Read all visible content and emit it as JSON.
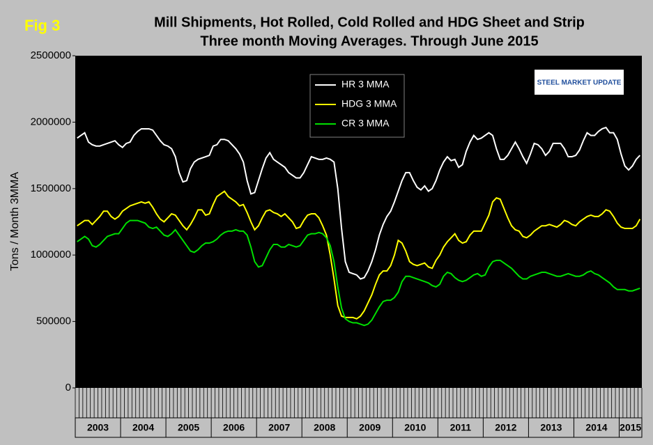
{
  "chart_data": {
    "type": "line",
    "figure_label": "Fig 3",
    "title": "Mill Shipments, Hot Rolled, Cold Rolled and HDG Sheet and Strip",
    "subtitle": "Three month Moving Averages. Through June 2015",
    "y_label": "Tons / Month 3MMA",
    "logo": "STEEL MARKET UPDATE",
    "ylim": [
      0,
      2500000
    ],
    "yticks": [
      0,
      500000,
      1000000,
      1500000,
      2000000,
      2500000
    ],
    "grid": false,
    "legend": "top-center",
    "categories": [
      "2003",
      null,
      null,
      null,
      null,
      null,
      null,
      null,
      null,
      null,
      null,
      null,
      "2004",
      null,
      null,
      null,
      null,
      null,
      null,
      null,
      null,
      null,
      null,
      null,
      "2005",
      null,
      null,
      null,
      null,
      null,
      null,
      null,
      null,
      null,
      null,
      null,
      "2006",
      null,
      null,
      null,
      null,
      null,
      null,
      null,
      null,
      null,
      null,
      null,
      "2007",
      null,
      null,
      null,
      null,
      null,
      null,
      null,
      null,
      null,
      null,
      null,
      "2008",
      null,
      null,
      null,
      null,
      null,
      null,
      null,
      null,
      null,
      null,
      null,
      "2009",
      null,
      null,
      null,
      null,
      null,
      null,
      null,
      null,
      null,
      null,
      null,
      "2010",
      null,
      null,
      null,
      null,
      null,
      null,
      null,
      null,
      null,
      null,
      null,
      "2011",
      null,
      null,
      null,
      null,
      null,
      null,
      null,
      null,
      null,
      null,
      null,
      "2012",
      null,
      null,
      null,
      null,
      null,
      null,
      null,
      null,
      null,
      null,
      null,
      "2013",
      null,
      null,
      null,
      null,
      null,
      null,
      null,
      null,
      null,
      null,
      null,
      "2014",
      null,
      null,
      null,
      null,
      null,
      null,
      null,
      null,
      null,
      null,
      null,
      "2015",
      null,
      null,
      null,
      null,
      null
    ],
    "series": [
      {
        "name": "HR 3 MMA",
        "color": "#ffffff",
        "values": [
          1880000,
          1900000,
          1920000,
          1850000,
          1830000,
          1820000,
          1820000,
          1830000,
          1840000,
          1850000,
          1860000,
          1830000,
          1810000,
          1840000,
          1850000,
          1900000,
          1930000,
          1950000,
          1950000,
          1950000,
          1940000,
          1900000,
          1860000,
          1830000,
          1820000,
          1800000,
          1740000,
          1620000,
          1550000,
          1560000,
          1650000,
          1700000,
          1720000,
          1730000,
          1740000,
          1750000,
          1820000,
          1830000,
          1870000,
          1870000,
          1860000,
          1830000,
          1800000,
          1760000,
          1700000,
          1560000,
          1460000,
          1470000,
          1560000,
          1650000,
          1730000,
          1770000,
          1720000,
          1700000,
          1680000,
          1660000,
          1620000,
          1600000,
          1580000,
          1580000,
          1620000,
          1680000,
          1740000,
          1730000,
          1720000,
          1720000,
          1730000,
          1720000,
          1700000,
          1500000,
          1200000,
          950000,
          870000,
          860000,
          850000,
          820000,
          830000,
          880000,
          950000,
          1040000,
          1150000,
          1230000,
          1290000,
          1330000,
          1400000,
          1480000,
          1560000,
          1620000,
          1620000,
          1560000,
          1510000,
          1490000,
          1520000,
          1480000,
          1500000,
          1560000,
          1640000,
          1700000,
          1740000,
          1710000,
          1720000,
          1660000,
          1680000,
          1780000,
          1850000,
          1900000,
          1870000,
          1880000,
          1900000,
          1920000,
          1900000,
          1800000,
          1720000,
          1720000,
          1750000,
          1800000,
          1850000,
          1800000,
          1740000,
          1690000,
          1760000,
          1840000,
          1830000,
          1800000,
          1750000,
          1780000,
          1840000,
          1840000,
          1840000,
          1800000,
          1740000,
          1740000,
          1750000,
          1790000,
          1860000,
          1920000,
          1900000,
          1900000,
          1930000,
          1950000,
          1960000,
          1920000,
          1920000,
          1870000,
          1760000,
          1670000,
          1640000,
          1670000,
          1720000,
          1750000
        ]
      },
      {
        "name": "HDG 3 MMA",
        "color": "#ffff00",
        "values": [
          1220000,
          1240000,
          1260000,
          1260000,
          1230000,
          1260000,
          1290000,
          1330000,
          1330000,
          1290000,
          1270000,
          1290000,
          1330000,
          1350000,
          1370000,
          1380000,
          1390000,
          1400000,
          1390000,
          1400000,
          1360000,
          1310000,
          1270000,
          1250000,
          1280000,
          1310000,
          1300000,
          1260000,
          1220000,
          1190000,
          1230000,
          1280000,
          1340000,
          1340000,
          1300000,
          1310000,
          1380000,
          1440000,
          1460000,
          1480000,
          1440000,
          1420000,
          1400000,
          1370000,
          1380000,
          1320000,
          1250000,
          1190000,
          1220000,
          1280000,
          1330000,
          1340000,
          1320000,
          1310000,
          1290000,
          1310000,
          1280000,
          1250000,
          1200000,
          1210000,
          1260000,
          1300000,
          1310000,
          1310000,
          1280000,
          1220000,
          1150000,
          1000000,
          820000,
          620000,
          540000,
          530000,
          530000,
          530000,
          520000,
          540000,
          580000,
          640000,
          700000,
          780000,
          850000,
          880000,
          880000,
          920000,
          1000000,
          1110000,
          1090000,
          1030000,
          950000,
          930000,
          920000,
          930000,
          940000,
          910000,
          900000,
          960000,
          1000000,
          1060000,
          1100000,
          1130000,
          1160000,
          1110000,
          1090000,
          1100000,
          1150000,
          1180000,
          1180000,
          1180000,
          1240000,
          1300000,
          1400000,
          1430000,
          1420000,
          1350000,
          1280000,
          1220000,
          1190000,
          1180000,
          1140000,
          1130000,
          1150000,
          1180000,
          1200000,
          1220000,
          1220000,
          1230000,
          1220000,
          1210000,
          1230000,
          1260000,
          1250000,
          1230000,
          1220000,
          1250000,
          1270000,
          1290000,
          1300000,
          1290000,
          1290000,
          1310000,
          1340000,
          1330000,
          1290000,
          1240000,
          1210000,
          1200000,
          1200000,
          1200000,
          1220000,
          1270000
        ]
      },
      {
        "name": "CR 3 MMA",
        "color": "#00e000",
        "values": [
          1100000,
          1120000,
          1140000,
          1120000,
          1070000,
          1060000,
          1080000,
          1110000,
          1140000,
          1150000,
          1160000,
          1160000,
          1200000,
          1240000,
          1260000,
          1260000,
          1260000,
          1250000,
          1240000,
          1210000,
          1200000,
          1210000,
          1180000,
          1150000,
          1140000,
          1160000,
          1190000,
          1150000,
          1110000,
          1070000,
          1030000,
          1020000,
          1040000,
          1070000,
          1090000,
          1090000,
          1100000,
          1120000,
          1150000,
          1170000,
          1180000,
          1180000,
          1190000,
          1180000,
          1180000,
          1150000,
          1060000,
          950000,
          910000,
          920000,
          980000,
          1040000,
          1080000,
          1080000,
          1060000,
          1060000,
          1080000,
          1070000,
          1060000,
          1070000,
          1110000,
          1150000,
          1160000,
          1160000,
          1170000,
          1160000,
          1130000,
          1070000,
          950000,
          760000,
          600000,
          520000,
          500000,
          490000,
          490000,
          480000,
          470000,
          480000,
          510000,
          560000,
          610000,
          650000,
          660000,
          660000,
          680000,
          720000,
          800000,
          840000,
          840000,
          830000,
          820000,
          810000,
          800000,
          790000,
          770000,
          760000,
          780000,
          840000,
          870000,
          860000,
          830000,
          810000,
          800000,
          810000,
          830000,
          850000,
          860000,
          840000,
          850000,
          910000,
          950000,
          960000,
          960000,
          940000,
          920000,
          900000,
          870000,
          840000,
          820000,
          820000,
          840000,
          850000,
          860000,
          870000,
          870000,
          860000,
          850000,
          840000,
          840000,
          850000,
          860000,
          850000,
          840000,
          840000,
          850000,
          870000,
          880000,
          860000,
          850000,
          830000,
          810000,
          790000,
          760000,
          740000,
          740000,
          740000,
          730000,
          730000,
          740000,
          750000
        ]
      }
    ]
  }
}
